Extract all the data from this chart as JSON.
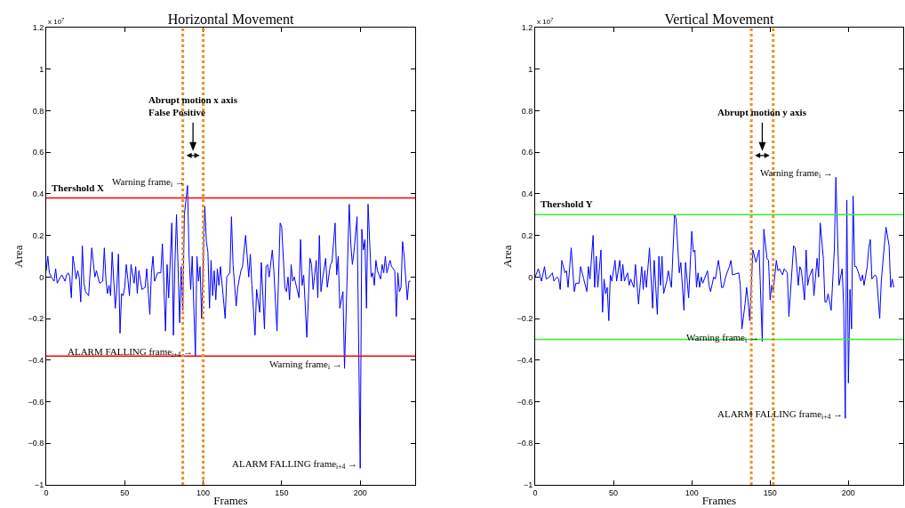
{
  "chart_data": [
    {
      "type": "line",
      "title": "Horizontal Movement",
      "xlabel": "Frames",
      "ylabel": "Area",
      "xlim": [
        0,
        235
      ],
      "ylim": [
        -1,
        1.2
      ],
      "xticks": [
        0,
        50,
        100,
        150,
        200
      ],
      "yticks": [
        -1,
        -0.8,
        -0.6,
        -0.4,
        -0.2,
        0,
        0.2,
        0.4,
        0.6,
        0.8,
        1,
        1.2
      ],
      "grid": false,
      "marker": "none",
      "line_style": "solid",
      "series": [
        {
          "color": "#0000ff",
          "x": [
            0,
            1,
            2,
            4,
            5,
            6,
            7,
            9,
            10,
            12,
            13,
            14,
            15,
            16,
            17,
            18,
            19,
            20,
            21,
            22,
            23,
            24,
            25,
            27,
            29,
            31,
            32,
            34,
            36,
            37,
            38,
            39,
            40,
            41,
            42,
            44,
            45,
            46,
            47,
            48,
            49,
            50,
            51,
            52,
            53,
            54,
            56,
            57,
            58,
            59,
            61,
            63,
            64,
            66,
            67,
            68,
            69,
            71,
            73,
            74,
            75,
            76,
            77,
            78,
            80,
            81,
            82,
            83,
            85,
            86,
            87,
            88,
            90,
            91,
            92,
            93,
            95,
            96,
            97,
            98,
            99,
            101,
            102,
            103,
            104,
            105,
            106,
            107,
            108,
            109,
            110,
            111,
            114,
            115,
            117,
            118,
            119,
            121,
            122,
            124,
            125,
            127,
            129,
            130,
            131,
            133,
            134,
            136,
            137,
            139,
            140,
            141,
            142,
            144,
            145,
            147,
            149,
            150,
            152,
            153,
            154,
            155,
            156,
            157,
            158,
            161,
            162,
            163,
            164,
            166,
            168,
            169,
            170,
            172,
            173,
            174,
            175,
            176,
            178,
            179,
            181,
            182,
            184,
            185,
            186,
            187,
            189,
            190,
            193,
            194,
            195,
            196,
            198,
            200,
            201,
            202,
            203,
            204,
            205,
            207,
            208,
            209,
            210,
            211,
            213,
            214,
            215,
            216,
            217,
            219,
            220,
            222,
            223,
            224,
            225,
            226,
            227,
            228,
            230,
            231,
            232
          ],
          "values": [
            0.03,
            0.1,
            0.02,
            -0.01,
            -0.02,
            0.04,
            -0.03,
            0,
            0.01,
            -0.02,
            0.01,
            0.02,
            0,
            -0.1,
            0.1,
            0.05,
            -0.01,
            0.03,
            0,
            -0.12,
            0.15,
            -0.03,
            -0.07,
            -0.09,
            0.14,
            0,
            0.03,
            -0.03,
            -0.02,
            0.14,
            -0.01,
            -0.08,
            -0.04,
            -0.09,
            0.12,
            -0.15,
            -0.05,
            0.11,
            -0.27,
            -0.08,
            -0.09,
            -0.05,
            0.06,
            -0.01,
            -0.09,
            0.06,
            -0.03,
            0.05,
            -0.08,
            0.03,
            -0.06,
            -0.05,
            0.04,
            -0.18,
            0.02,
            0.1,
            -0.02,
            0.02,
            0.02,
            0.16,
            -0.05,
            -0.26,
            0.06,
            -0.1,
            0.26,
            -0.28,
            0.07,
            0.3,
            -0.22,
            0.05,
            -0.16,
            0.3,
            0.44,
            0.1,
            -0.06,
            0.1,
            -0.38,
            0.1,
            -0.02,
            0.05,
            -0.2,
            0.34,
            0.17,
            0.12,
            -0.15,
            0.08,
            -0.09,
            0.03,
            -0.11,
            0.04,
            -0.04,
            0.05,
            -0.2,
            0,
            0.02,
            0.29,
            0.06,
            -0.14,
            -0.05,
            0.03,
            0.05,
            0.2,
            0,
            0.11,
            -0.04,
            -0.28,
            -0.06,
            -0.17,
            0.07,
            -0.25,
            0.05,
            0.06,
            0,
            0.13,
            0.03,
            -0.26,
            0.26,
            0.24,
            -0.05,
            -0.07,
            0,
            -0.11,
            0.06,
            -0.02,
            0,
            -0.1,
            0.18,
            -0.04,
            0.01,
            -0.29,
            0.09,
            0.06,
            -0.06,
            0.08,
            -0.1,
            0.2,
            -0.07,
            -0.01,
            0.09,
            -0.05,
            0.06,
            0.07,
            0.26,
            0.01,
            0.1,
            -0.15,
            -0.07,
            -0.44,
            0.35,
            0.16,
            0.06,
            0.12,
            0.29,
            -0.92,
            0.23,
            0.13,
            0.18,
            -0.15,
            0.35,
            0,
            0.02,
            -0.04,
            0.08,
            0.03,
            -0.01,
            0.06,
            0.02,
            0.1,
            0.02,
            0.08,
            0.05,
            0.03,
            -0.19,
            0.02,
            -0.07,
            -0.05,
            0.17,
            0.1,
            -0.11,
            -0.02,
            -0.02
          ]
        }
      ],
      "ref_lines": [
        {
          "axis": "y",
          "value": 0.38,
          "label": "Thershold X",
          "color": "#ff0000"
        },
        {
          "axis": "y",
          "value": -0.38,
          "color": "#ff0000"
        },
        {
          "axis": "x",
          "value": 87,
          "color": "#f08c1e",
          "line_style": "dotted"
        },
        {
          "axis": "x",
          "value": 100,
          "color": "#f08c1e",
          "line_style": "dotted"
        }
      ],
      "annotations": [
        "x 10$^{7}$",
        "Abrupt motion x axis\nFalse Positive",
        {
          "text": "Warning frame$_{i}$ →",
          "x": 90,
          "y": 0.44
        },
        {
          "text": "ALARM FALLING frame$_{i+4}$ →",
          "x": 95,
          "y": -0.38
        },
        {
          "text": "Warning frame$_{i}$ →",
          "x": 190,
          "y": -0.44
        },
        {
          "text": "ALARM FALLING frame$_{i+4}$ →",
          "x": 200,
          "y": -0.92
        }
      ]
    },
    {
      "type": "line",
      "title": "Vertical Movement",
      "xlabel": "Frames",
      "ylabel": "Area",
      "xlim": [
        0,
        235
      ],
      "ylim": [
        -1,
        1.2
      ],
      "xticks": [
        0,
        50,
        100,
        150,
        200
      ],
      "yticks": [
        -1,
        -0.8,
        -0.6,
        -0.4,
        -0.2,
        0,
        0.2,
        0.4,
        0.6,
        0.8,
        1,
        1.2
      ],
      "grid": false,
      "marker": "none",
      "line_style": "solid",
      "series": [
        {
          "color": "#0000ff",
          "x": [
            0,
            2,
            4,
            6,
            7,
            9,
            11,
            12,
            14,
            15,
            16,
            17,
            19,
            20,
            21,
            23,
            25,
            26,
            28,
            29,
            31,
            33,
            34,
            35,
            37,
            38,
            39,
            40,
            42,
            43,
            44,
            45,
            46,
            47,
            48,
            49,
            51,
            52,
            54,
            55,
            56,
            57,
            59,
            60,
            61,
            63,
            64,
            66,
            68,
            69,
            70,
            71,
            73,
            75,
            76,
            78,
            79,
            80,
            81,
            82,
            84,
            85,
            87,
            89,
            90,
            92,
            93,
            95,
            96,
            98,
            100,
            101,
            102,
            103,
            104,
            105,
            106,
            107,
            110,
            111,
            112,
            114,
            115,
            117,
            118,
            119,
            120,
            122,
            124,
            125,
            126,
            130,
            131,
            132,
            134,
            135,
            136,
            137,
            139,
            141,
            143,
            145,
            146,
            148,
            149,
            150,
            151,
            152,
            154,
            155,
            156,
            158,
            159,
            161,
            162,
            165,
            166,
            168,
            169,
            170,
            172,
            173,
            174,
            175,
            177,
            178,
            180,
            181,
            182,
            184,
            185,
            186,
            187,
            189,
            191,
            192,
            194,
            196,
            197,
            198,
            199,
            200,
            201,
            202,
            203,
            204,
            205,
            206,
            208,
            209,
            210,
            212,
            213,
            214,
            215,
            217,
            218,
            220,
            221,
            222,
            224,
            226,
            227,
            228,
            229
          ],
          "values": [
            0,
            0.04,
            -0.02,
            0.05,
            -0.01,
            0,
            0.02,
            -0.02,
            0,
            -0.01,
            -0.06,
            0.08,
            0.02,
            0.03,
            -0.05,
            0.14,
            -0.07,
            -0.03,
            -0.03,
            0.05,
            -0.01,
            -0.07,
            0.05,
            -0.01,
            0.2,
            -0.05,
            0.1,
            -0.05,
            0.13,
            -0.17,
            -0.01,
            -0.08,
            -0.05,
            -0.21,
            0.01,
            -0.02,
            0.08,
            -0.02,
            0.08,
            -0.02,
            0.06,
            -0.02,
            0.02,
            -0.04,
            -0.01,
            -0.05,
            0.06,
            -0.13,
            0.05,
            -0.06,
            0.03,
            -0.05,
            0.14,
            -0.15,
            0.08,
            -0.18,
            0.1,
            -0.04,
            0.1,
            -0.08,
            -0.02,
            0.03,
            -0.05,
            0.3,
            0.28,
            0.02,
            0.07,
            -0.16,
            0.07,
            -0.1,
            0.22,
            0.12,
            0.13,
            -0.05,
            0.02,
            -0.05,
            0,
            -0.03,
            0.03,
            -0.04,
            -0.07,
            0,
            -0.01,
            0.08,
            0.03,
            -0.05,
            -0.05,
            0.01,
            0.05,
            0.08,
            0.01,
            0.02,
            -0.04,
            -0.25,
            -0.13,
            -0.05,
            -0.12,
            -0.21,
            0.13,
            0.07,
            0.13,
            -0.31,
            0.23,
            0.09,
            0.08,
            -0.11,
            -0.04,
            -0.07,
            0.08,
            0.03,
            0.04,
            0.01,
            0.04,
            0.02,
            -0.19,
            0.15,
            0.14,
            -0.04,
            0.05,
            0.03,
            -0.11,
            0.13,
            -0.04,
            0,
            0.04,
            -0.09,
            0.09,
            0,
            0.26,
            0.09,
            -0.12,
            -0.12,
            -0.08,
            -0.16,
            0.13,
            0.48,
            -0.04,
            0.04,
            -0.14,
            -0.68,
            0.37,
            -0.51,
            -0.06,
            -0.25,
            0.39,
            0.05,
            0.05,
            0.03,
            -0.02,
            0.01,
            -0.04,
            0.05,
            0.14,
            0.18,
            -0.01,
            0.01,
            0,
            -0.2,
            -0.02,
            0.07,
            0.24,
            0.15,
            -0.05,
            -0.01,
            -0.05
          ]
        }
      ],
      "ref_lines": [
        {
          "axis": "y",
          "value": 0.3,
          "label": "Thershold Y",
          "color": "#33ee33"
        },
        {
          "axis": "y",
          "value": -0.3,
          "color": "#33ee33"
        },
        {
          "axis": "x",
          "value": 138,
          "color": "#f08c1e",
          "line_style": "dotted"
        },
        {
          "axis": "x",
          "value": 152,
          "color": "#f08c1e",
          "line_style": "dotted"
        }
      ],
      "annotations": [
        "x 10$^{7}$",
        "Abrupt motion y axis",
        {
          "text": "Warning frame$_{i}$ →",
          "x": 192,
          "y": 0.48
        },
        {
          "text": "Warning frame$_{i}$ →",
          "x": 145,
          "y": -0.31
        },
        {
          "text": "ALARM FALLING frame$_{i+4}$ →",
          "x": 198,
          "y": -0.68
        }
      ]
    }
  ]
}
